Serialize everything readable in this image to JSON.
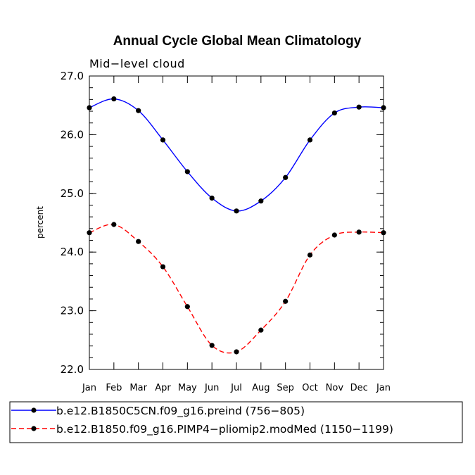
{
  "chart_data": {
    "type": "line",
    "title": "Annual Cycle Global Mean Climatology",
    "subtitle": "Mid−level cloud",
    "xlabel": "",
    "ylabel": "percent",
    "categories": [
      "Jan",
      "Feb",
      "Mar",
      "Apr",
      "May",
      "Jun",
      "Jul",
      "Aug",
      "Sep",
      "Oct",
      "Nov",
      "Dec",
      "Jan"
    ],
    "ylim": [
      22.0,
      27.0
    ],
    "yticks": [
      "22.0",
      "23.0",
      "24.0",
      "25.0",
      "26.0",
      "27.0"
    ],
    "legend_position": "bottom",
    "series": [
      {
        "name": "b.e12.B1850C5CN.f09_g16.preind (756−805)",
        "color": "#0000ff",
        "dash": "solid",
        "values": [
          26.46,
          26.61,
          26.41,
          25.91,
          25.37,
          24.92,
          24.7,
          24.87,
          25.27,
          25.91,
          26.37,
          26.47,
          26.46
        ]
      },
      {
        "name": "b.e12.B1850.f09_g16.PIMP4−pliomip2.modMed (1150−1199)",
        "color": "#ff0000",
        "dash": "dashed",
        "values": [
          24.33,
          24.47,
          24.18,
          23.75,
          23.07,
          22.41,
          22.3,
          22.67,
          23.16,
          23.95,
          24.29,
          24.34,
          24.33
        ]
      }
    ]
  }
}
